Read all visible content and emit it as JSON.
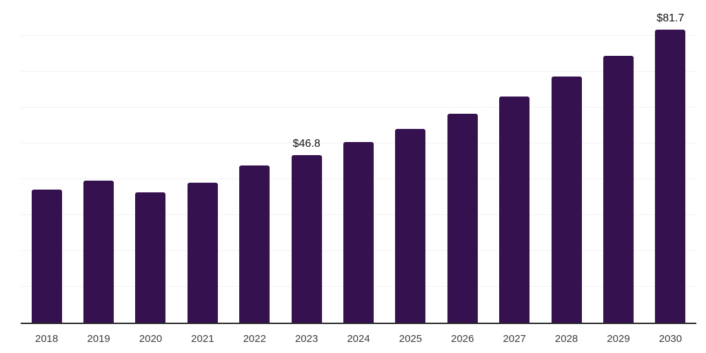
{
  "chart_data": {
    "type": "bar",
    "title": "",
    "xlabel": "",
    "ylabel": "",
    "categories": [
      "2018",
      "2019",
      "2020",
      "2021",
      "2022",
      "2023",
      "2024",
      "2025",
      "2026",
      "2027",
      "2028",
      "2029",
      "2030"
    ],
    "values": [
      37.2,
      39.7,
      36.4,
      39.0,
      43.8,
      46.8,
      50.3,
      54.1,
      58.3,
      63.1,
      68.6,
      74.5,
      81.7
    ],
    "data_labels": {
      "2023": "$46.8",
      "2030": "$81.7"
    },
    "ylim": [
      0,
      90
    ],
    "gridline_step": 10,
    "grid": true,
    "legend": false,
    "colors": {
      "bar": "#36114f",
      "axis": "#262626",
      "gridline": "#f2f2f2",
      "tick_text": "#3d3d3d",
      "label_text": "#111111"
    }
  }
}
